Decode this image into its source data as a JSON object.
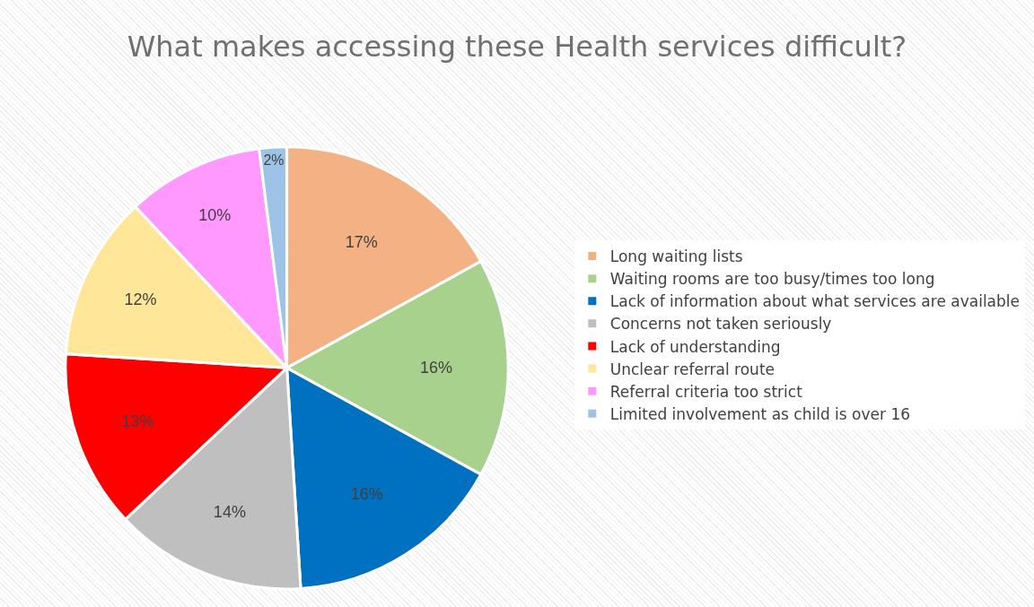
{
  "chart_data": {
    "type": "pie",
    "title": "What makes accessing these Health services difficult?",
    "categories": [
      "Long waiting lists",
      "Waiting rooms are too busy/times too long",
      "Lack of information about what services are available",
      "Concerns not taken seriously",
      "Lack of understanding",
      "Unclear referral route",
      "Referral criteria too strict",
      "Limited involvement as child is over 16"
    ],
    "values": [
      17,
      16,
      16,
      14,
      13,
      12,
      10,
      2
    ],
    "value_labels": [
      "17%",
      "16%",
      "16%",
      "14%",
      "13%",
      "12%",
      "10%",
      "2%"
    ],
    "colors": [
      "#f4b183",
      "#a9d18e",
      "#0070c0",
      "#bfbfbf",
      "#ff0000",
      "#ffe699",
      "#ff99ff",
      "#9dc3e6"
    ],
    "legend": "right"
  }
}
